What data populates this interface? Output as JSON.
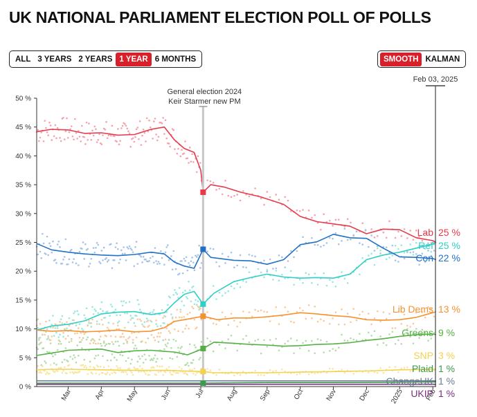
{
  "title": "UK NATIONAL PARLIAMENT ELECTION POLL OF POLLS",
  "range_buttons": [
    {
      "label": "ALL",
      "active": false
    },
    {
      "label": "3 YEARS",
      "active": false
    },
    {
      "label": "2 YEARS",
      "active": false
    },
    {
      "label": "1 YEAR",
      "active": true
    },
    {
      "label": "6 MONTHS",
      "active": false
    }
  ],
  "method_buttons": [
    {
      "label": "SMOOTH",
      "active": true
    },
    {
      "label": "KALMAN",
      "active": false
    }
  ],
  "accent_color": "#d81f2a",
  "chart_data": {
    "type": "line",
    "title": "UK NATIONAL PARLIAMENT ELECTION POLL OF POLLS",
    "current_date_label": "Feb 03, 2025",
    "annotation": [
      "General election 2024",
      "Keir Starmer new PM"
    ],
    "y_ticks": [
      "0 %",
      "5 %",
      "10 %",
      "15 %",
      "20 %",
      "25 %",
      "30 %",
      "35 %",
      "40 %",
      "45 %",
      "50 %"
    ],
    "ylim": [
      0,
      50
    ],
    "x_ticks": [
      "Mar",
      "Apr",
      "May",
      "Jun",
      "Jul",
      "Aug",
      "Sep",
      "Oct",
      "Nov",
      "Dec",
      "2025",
      "Feb"
    ],
    "x_tick_months": [
      2,
      3,
      4,
      5,
      6,
      7,
      8,
      9,
      10,
      11,
      12,
      13
    ],
    "election_month": 6.07,
    "xlim": [
      1.05,
      13.1
    ],
    "grid": false,
    "series": [
      {
        "name": "Lab",
        "value_label": "25 %",
        "color": "#e8384a",
        "light": "#f4a3ad",
        "pre": [
          [
            1.05,
            44.2
          ],
          [
            1.5,
            44.6
          ],
          [
            2,
            44.5
          ],
          [
            2.5,
            43.9
          ],
          [
            3,
            44.0
          ],
          [
            3.5,
            43.6
          ],
          [
            4,
            43.7
          ],
          [
            4.5,
            44.6
          ],
          [
            4.9,
            45.0
          ],
          [
            5.2,
            42.8
          ],
          [
            5.5,
            41.3
          ],
          [
            5.8,
            40.6
          ],
          [
            6.0,
            37.5
          ],
          [
            6.07,
            33.7
          ]
        ],
        "post": [
          [
            6.07,
            33.7
          ],
          [
            6.3,
            35.0
          ],
          [
            6.7,
            34.6
          ],
          [
            7.2,
            33.7
          ],
          [
            7.8,
            32.9
          ],
          [
            8.5,
            31.6
          ],
          [
            9,
            29.5
          ],
          [
            9.5,
            28.6
          ],
          [
            10,
            28.2
          ],
          [
            10.5,
            27.8
          ],
          [
            11,
            26.5
          ],
          [
            11.5,
            27.3
          ],
          [
            12,
            27.2
          ],
          [
            12.5,
            25.8
          ],
          [
            13,
            25.3
          ],
          [
            13.1,
            25.0
          ]
        ]
      },
      {
        "name": "Ref",
        "value_label": "25 %",
        "color": "#2ecfc4",
        "light": "#9ae6e0",
        "pre": [
          [
            1.05,
            9.8
          ],
          [
            1.5,
            10.5
          ],
          [
            2,
            10.8
          ],
          [
            2.5,
            11.4
          ],
          [
            3,
            12.6
          ],
          [
            3.5,
            12.9
          ],
          [
            4,
            13.0
          ],
          [
            4.5,
            12.5
          ],
          [
            4.9,
            12.8
          ],
          [
            5.2,
            14.5
          ],
          [
            5.5,
            16.0
          ],
          [
            5.8,
            16.5
          ],
          [
            6.07,
            14.3
          ]
        ],
        "post": [
          [
            6.07,
            14.3
          ],
          [
            6.4,
            16.2
          ],
          [
            7,
            18.2
          ],
          [
            7.5,
            18.9
          ],
          [
            8,
            19.5
          ],
          [
            8.5,
            19.0
          ],
          [
            9,
            18.8
          ],
          [
            9.5,
            18.9
          ],
          [
            10,
            18.8
          ],
          [
            10.5,
            19.5
          ],
          [
            11,
            22.0
          ],
          [
            11.5,
            22.8
          ],
          [
            12,
            23.3
          ],
          [
            12.5,
            24.0
          ],
          [
            13,
            24.7
          ],
          [
            13.1,
            25.0
          ]
        ]
      },
      {
        "name": "Con",
        "value_label": "22 %",
        "color": "#2070c8",
        "light": "#a6c3e6",
        "pre": [
          [
            1.05,
            24.8
          ],
          [
            1.5,
            23.7
          ],
          [
            2,
            23.3
          ],
          [
            2.5,
            23.0
          ],
          [
            3,
            22.8
          ],
          [
            3.5,
            22.7
          ],
          [
            4,
            22.9
          ],
          [
            4.5,
            23.3
          ],
          [
            4.9,
            23.0
          ],
          [
            5.2,
            21.6
          ],
          [
            5.5,
            20.9
          ],
          [
            5.8,
            20.5
          ],
          [
            6.07,
            23.8
          ]
        ],
        "post": [
          [
            6.07,
            23.8
          ],
          [
            6.3,
            22.4
          ],
          [
            7,
            21.9
          ],
          [
            7.5,
            21.8
          ],
          [
            8,
            21.2
          ],
          [
            8.5,
            22.0
          ],
          [
            9,
            24.6
          ],
          [
            9.5,
            25.1
          ],
          [
            10,
            26.4
          ],
          [
            10.5,
            25.8
          ],
          [
            11,
            25.7
          ],
          [
            11.5,
            24.0
          ],
          [
            12,
            22.5
          ],
          [
            12.5,
            22.4
          ],
          [
            13,
            22.2
          ],
          [
            13.1,
            22.0
          ]
        ]
      },
      {
        "name": "Lib Dems",
        "value_label": "13 %",
        "color": "#f5922f",
        "light": "#f9c99a",
        "pre": [
          [
            1.05,
            9.8
          ],
          [
            1.5,
            9.6
          ],
          [
            2,
            9.7
          ],
          [
            2.5,
            9.5
          ],
          [
            3,
            9.6
          ],
          [
            3.5,
            9.8
          ],
          [
            4,
            9.5
          ],
          [
            4.5,
            9.6
          ],
          [
            4.9,
            10.2
          ],
          [
            5.2,
            11.3
          ],
          [
            5.6,
            11.7
          ],
          [
            6.07,
            12.2
          ]
        ],
        "post": [
          [
            6.07,
            12.2
          ],
          [
            6.5,
            11.6
          ],
          [
            7,
            11.9
          ],
          [
            7.5,
            11.9
          ],
          [
            8,
            12.1
          ],
          [
            8.5,
            12.4
          ],
          [
            9,
            12.8
          ],
          [
            9.5,
            12.6
          ],
          [
            10,
            12.3
          ],
          [
            10.5,
            12.1
          ],
          [
            11,
            11.6
          ],
          [
            11.5,
            11.5
          ],
          [
            12,
            11.6
          ],
          [
            12.5,
            12.0
          ],
          [
            13,
            12.8
          ],
          [
            13.1,
            13.0
          ]
        ]
      },
      {
        "name": "Greens",
        "value_label": "9 %",
        "color": "#55b043",
        "light": "#b3dcaa",
        "pre": [
          [
            1.05,
            5.4
          ],
          [
            1.5,
            5.8
          ],
          [
            2,
            6.3
          ],
          [
            2.5,
            6.4
          ],
          [
            3,
            6.5
          ],
          [
            3.5,
            5.9
          ],
          [
            4,
            6.2
          ],
          [
            4.5,
            6.3
          ],
          [
            4.9,
            6.1
          ],
          [
            5.2,
            6.0
          ],
          [
            5.6,
            5.5
          ],
          [
            6.07,
            6.6
          ]
        ],
        "post": [
          [
            6.07,
            6.6
          ],
          [
            6.4,
            7.7
          ],
          [
            7,
            7.5
          ],
          [
            7.5,
            7.3
          ],
          [
            8,
            7.2
          ],
          [
            8.5,
            7.0
          ],
          [
            9,
            7.1
          ],
          [
            9.5,
            7.3
          ],
          [
            10,
            7.4
          ],
          [
            10.5,
            7.6
          ],
          [
            11,
            8.0
          ],
          [
            11.5,
            8.3
          ],
          [
            12,
            8.7
          ],
          [
            12.5,
            9.0
          ],
          [
            13,
            9.1
          ],
          [
            13.1,
            9.0
          ]
        ]
      },
      {
        "name": "SNP",
        "value_label": "3 %",
        "color": "#f3d24f",
        "light": "#f8e5a1",
        "pre": [
          [
            1.05,
            2.9
          ],
          [
            1.5,
            3.0
          ],
          [
            2,
            3.0
          ],
          [
            3,
            2.9
          ],
          [
            4,
            2.8
          ],
          [
            5,
            2.8
          ],
          [
            6.07,
            2.6
          ]
        ],
        "post": [
          [
            6.07,
            2.6
          ],
          [
            6.4,
            2.4
          ],
          [
            7,
            2.4
          ],
          [
            8,
            2.4
          ],
          [
            9,
            2.5
          ],
          [
            10,
            2.6
          ],
          [
            11,
            2.7
          ],
          [
            12,
            2.9
          ],
          [
            13,
            3.0
          ],
          [
            13.1,
            3.0
          ]
        ]
      },
      {
        "name": "Plaid",
        "value_label": "1 %",
        "color": "#3e9a4f",
        "light": "#9fd0a8",
        "pre": [
          [
            1.05,
            0.6
          ],
          [
            3,
            0.6
          ],
          [
            5,
            0.6
          ],
          [
            6.07,
            0.6
          ]
        ],
        "post": [
          [
            6.07,
            0.6
          ],
          [
            8,
            0.7
          ],
          [
            10,
            0.7
          ],
          [
            13.1,
            0.8
          ]
        ]
      },
      {
        "name": "ChangeUK",
        "value_label": "1 %",
        "color": "#6b7b8f",
        "light": "#b5bdc8",
        "pre": [
          [
            1.05,
            1.0
          ],
          [
            6.07,
            1.0
          ]
        ],
        "post": [
          [
            6.07,
            1.0
          ],
          [
            13.1,
            1.0
          ]
        ]
      },
      {
        "name": "UKIP",
        "value_label": "1 %",
        "color": "#7a2f7f",
        "light": "#c49bc7",
        "pre": [
          [
            1.05,
            0.4
          ],
          [
            6.07,
            0.4
          ]
        ],
        "post": [
          [
            6.07,
            0.4
          ],
          [
            13.1,
            0.4
          ]
        ]
      }
    ]
  }
}
